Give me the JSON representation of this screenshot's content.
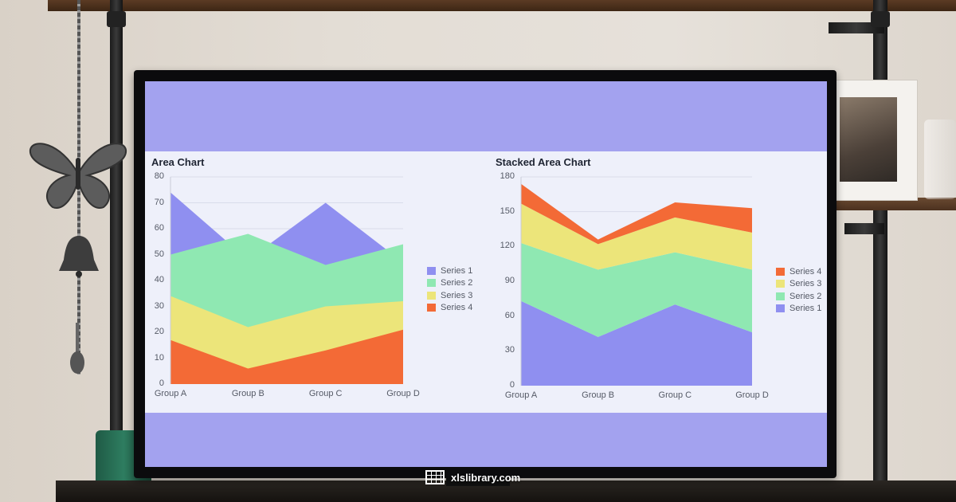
{
  "watermark": {
    "text": "xlslibrary.com",
    "icon": "spreadsheet-icon"
  },
  "colors": {
    "screen_background": "#a3a2ef",
    "chart_band": "#eef0fa",
    "series_1": "#8f8ff0",
    "series_2": "#8fe8b2",
    "series_3": "#ece57a",
    "series_4": "#f36a36"
  },
  "chart_data": [
    {
      "type": "area",
      "title": "Area Chart",
      "categories": [
        "Group A",
        "Group B",
        "Group C",
        "Group D"
      ],
      "ylim": [
        0,
        80
      ],
      "yticks": [
        "0",
        "10",
        "20",
        "30",
        "40",
        "50",
        "60",
        "70",
        "80"
      ],
      "series": [
        {
          "name": "Series 1",
          "values": [
            74,
            48,
            70,
            47
          ],
          "color": "#8f8ff0"
        },
        {
          "name": "Series 2",
          "values": [
            50,
            58,
            46,
            54
          ],
          "color": "#8fe8b2"
        },
        {
          "name": "Series 3",
          "values": [
            34,
            22,
            30,
            32
          ],
          "color": "#ece57a"
        },
        {
          "name": "Series 4",
          "values": [
            17,
            6,
            13,
            21
          ],
          "color": "#f36a36"
        }
      ],
      "legend": [
        "Series 1",
        "Series 2",
        "Series 3",
        "Series 4"
      ],
      "legend_position": "right",
      "grid": "horizontal"
    },
    {
      "type": "area",
      "stacked": true,
      "title": "Stacked Area Chart",
      "categories": [
        "Group A",
        "Group B",
        "Group C",
        "Group D"
      ],
      "ylim": [
        0,
        180
      ],
      "yticks": [
        "0",
        "30",
        "60",
        "90",
        "120",
        "150",
        "180"
      ],
      "series": [
        {
          "name": "Series 1",
          "values": [
            73,
            42,
            70,
            46
          ],
          "color": "#8f8ff0"
        },
        {
          "name": "Series 2",
          "values": [
            50,
            58,
            45,
            54
          ],
          "color": "#8fe8b2"
        },
        {
          "name": "Series 3",
          "values": [
            34,
            22,
            30,
            32
          ],
          "color": "#ece57a"
        },
        {
          "name": "Series 4",
          "values": [
            17,
            4,
            13,
            21
          ],
          "color": "#f36a36"
        }
      ],
      "legend": [
        "Series 4",
        "Series 3",
        "Series 2",
        "Series 1"
      ],
      "legend_position": "right",
      "grid": "horizontal"
    }
  ]
}
